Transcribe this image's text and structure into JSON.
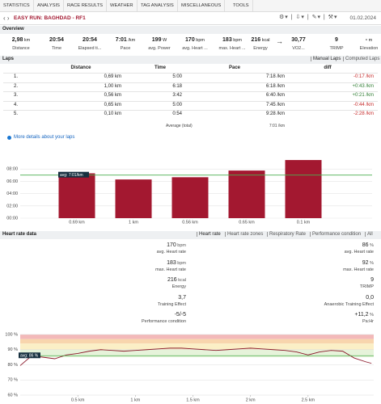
{
  "nav": {
    "tabs": [
      "STATISTICS",
      "ANALYSIS",
      "RACE RESULTS",
      "WEATHER",
      "TAG ANALYSIS",
      "MISCELLANEOUS",
      "TOOLS"
    ]
  },
  "header": {
    "title": "EASY RUN: BAGHDAD - RF1",
    "date": "01.02.2024"
  },
  "overview": {
    "heading": "Overview",
    "stats": [
      {
        "value": "2,98",
        "unit": "km",
        "label": "Distance"
      },
      {
        "value": "20:54",
        "label": "Time"
      },
      {
        "value": "20:54",
        "label": "Elapsed ti..."
      },
      {
        "value": "7:01",
        "unit": "/km",
        "label": "Pace"
      },
      {
        "value": "199",
        "unit": "W",
        "label": "avg. Power"
      },
      {
        "value": "170",
        "unit": "bpm",
        "label": "avg. Heart ..."
      },
      {
        "value": "183",
        "unit": "bpm",
        "label": "max. Heart ..."
      },
      {
        "value": "216",
        "unit": "kcal",
        "label": "Energy"
      },
      {
        "value": "30,77",
        "label": "VO2..."
      },
      {
        "value": "9",
        "label": "TRIMP"
      },
      {
        "value": "-",
        "unit": "m",
        "label": "Elevation"
      }
    ]
  },
  "laps": {
    "heading": "Laps",
    "options": [
      "Manual Laps",
      "Computed Laps"
    ],
    "columns": [
      "Distance",
      "Time",
      "Pace",
      "diff"
    ],
    "rows": [
      [
        "1.",
        "0,69 km",
        "5:00",
        "7:18 /km",
        "-0:17 /km"
      ],
      [
        "2.",
        "1,00 km",
        "6:18",
        "6:18 /km",
        "+0:43 /km"
      ],
      [
        "3.",
        "0,56 km",
        "3:42",
        "6:40 /km",
        "+0:21 /km"
      ],
      [
        "4.",
        "0,65 km",
        "5:00",
        "7:45 /km",
        "-0:44 /km"
      ],
      [
        "5.",
        "0,10 km",
        "0:54",
        "9:28 /km",
        "-2:28 /km"
      ]
    ],
    "average_label": "Average (total)",
    "average_pace": "7:01 /km",
    "details_link": "More details about your laps"
  },
  "heart_rate": {
    "heading": "Heart rate data",
    "tabs": [
      "Heart rate",
      "Heart rate zones",
      "Respiratory Rate",
      "Performance condition",
      "All"
    ],
    "left": [
      {
        "value": "170",
        "unit": "bpm",
        "label": "avg. Heart rate"
      },
      {
        "value": "183",
        "unit": "bpm",
        "label": "max. Heart rate"
      },
      {
        "value": "216",
        "unit": "kcal",
        "label": "Energy"
      },
      {
        "value": "3,7",
        "label": "Training Effect"
      },
      {
        "value": "-5/-5",
        "label": "Performance condition"
      }
    ],
    "right": [
      {
        "value": "86",
        "unit": "%",
        "label": "avg. Heart rate"
      },
      {
        "value": "92",
        "unit": "%",
        "label": "max. Heart rate"
      },
      {
        "value": "9",
        "label": "TRIMP"
      },
      {
        "value": "0,0",
        "label": "Anaerobic Training Effect"
      },
      {
        "value": "+11,2",
        "unit": "%",
        "label": "Pa:Hr"
      }
    ]
  },
  "chart_data": [
    {
      "type": "bar",
      "categories": [
        "0.69 km",
        "1 km",
        "0.56 km",
        "0.65 km",
        "0.1 km"
      ],
      "values": [
        438,
        378,
        400,
        465,
        568
      ],
      "color": "#a31830",
      "ylim": [
        0,
        600
      ],
      "yticks": [
        {
          "value": 0,
          "label": "00:00"
        },
        {
          "value": 120,
          "label": "02:00"
        },
        {
          "value": 240,
          "label": "04:00"
        },
        {
          "value": 360,
          "label": "06:00"
        },
        {
          "value": 480,
          "label": "08:00"
        }
      ],
      "grid": true,
      "average": {
        "value": 421,
        "label": "avg: 7:01/km",
        "color": "#4caf50"
      }
    },
    {
      "type": "line",
      "color": "#8b1a2b",
      "x": [
        0,
        0.1,
        0.2,
        0.3,
        0.4,
        0.5,
        0.6,
        0.7,
        0.8,
        0.9,
        1.0,
        1.1,
        1.2,
        1.3,
        1.4,
        1.5,
        1.6,
        1.7,
        1.8,
        1.9,
        2.0,
        2.1,
        2.2,
        2.3,
        2.4,
        2.5,
        2.6,
        2.7,
        2.8,
        2.9,
        3.0,
        3.05
      ],
      "values": [
        79.5,
        86,
        85,
        84,
        86.5,
        87.5,
        89,
        90,
        89.5,
        89,
        89.5,
        90,
        90.5,
        91,
        91,
        90.5,
        90,
        89.5,
        90,
        90.5,
        91,
        90.5,
        90,
        89.5,
        88.5,
        86.5,
        88.5,
        89.5,
        89,
        84.5,
        82,
        81
      ],
      "xlim": [
        0,
        3.07
      ],
      "xticks": [
        {
          "value": 0.5,
          "label": "0.5 km"
        },
        {
          "value": 1,
          "label": "1 km"
        },
        {
          "value": 1.5,
          "label": "1.5 km"
        },
        {
          "value": 2,
          "label": "2 km"
        },
        {
          "value": 2.5,
          "label": "2.5 km"
        }
      ],
      "ylim": [
        60,
        100
      ],
      "yticks": [
        {
          "value": 60,
          "label": "60 %"
        },
        {
          "value": 70,
          "label": "70 %"
        },
        {
          "value": 80,
          "label": "80 %"
        },
        {
          "value": 90,
          "label": "90 %"
        },
        {
          "value": 100,
          "label": "100 %"
        }
      ],
      "grid": true,
      "zones": [
        {
          "from": 97,
          "to": 100,
          "color": "#f3b9b9"
        },
        {
          "from": 94,
          "to": 97,
          "color": "#f8d5ad"
        },
        {
          "from": 90,
          "to": 94,
          "color": "#fbefc6"
        },
        {
          "from": 85,
          "to": 90,
          "color": "#e6f3da"
        }
      ],
      "average": {
        "value": 86,
        "label": "avg: 86 %",
        "color": "#4caf50"
      }
    }
  ]
}
